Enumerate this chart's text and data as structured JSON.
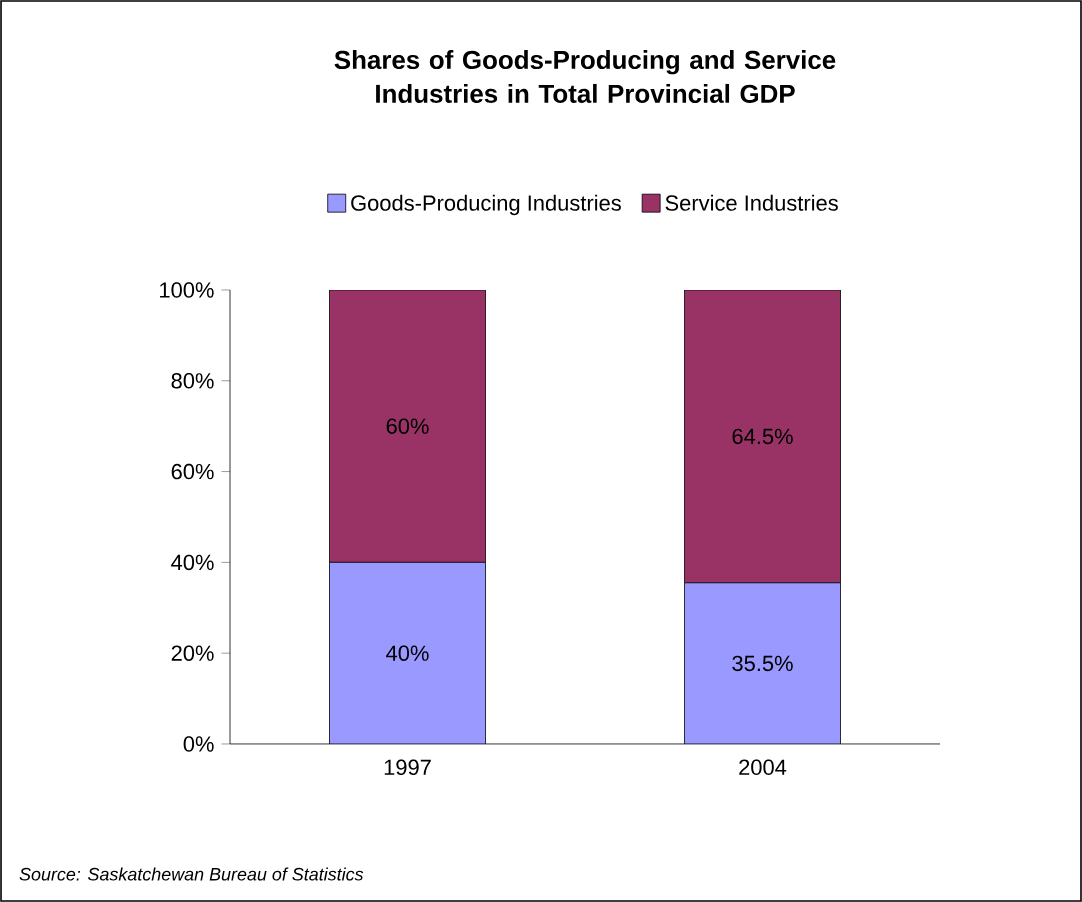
{
  "chart_data": {
    "type": "bar",
    "stacked": true,
    "title": "Shares of Goods-Producing and Service Industries in Total Provincial GDP",
    "categories": [
      "1997",
      "2004"
    ],
    "series": [
      {
        "name": "Goods-Producing Industries",
        "color": "#9999ff",
        "values": [
          40,
          35.5
        ],
        "value_labels": [
          "40%",
          "35.5%"
        ]
      },
      {
        "name": "Service Industries",
        "color": "#993366",
        "values": [
          60,
          64.5
        ],
        "value_labels": [
          "60%",
          "64.5%"
        ]
      }
    ],
    "ylim": [
      0,
      100
    ],
    "yticks": [
      {
        "value": 0,
        "label": "0%"
      },
      {
        "value": 20,
        "label": "20%"
      },
      {
        "value": 40,
        "label": "40%"
      },
      {
        "value": 60,
        "label": "60%"
      },
      {
        "value": 80,
        "label": "80%"
      },
      {
        "value": 100,
        "label": "100%"
      }
    ],
    "legend": "top",
    "grid": false,
    "annotations": [
      "Source: Saskatchewan Bureau of Statistics"
    ]
  }
}
